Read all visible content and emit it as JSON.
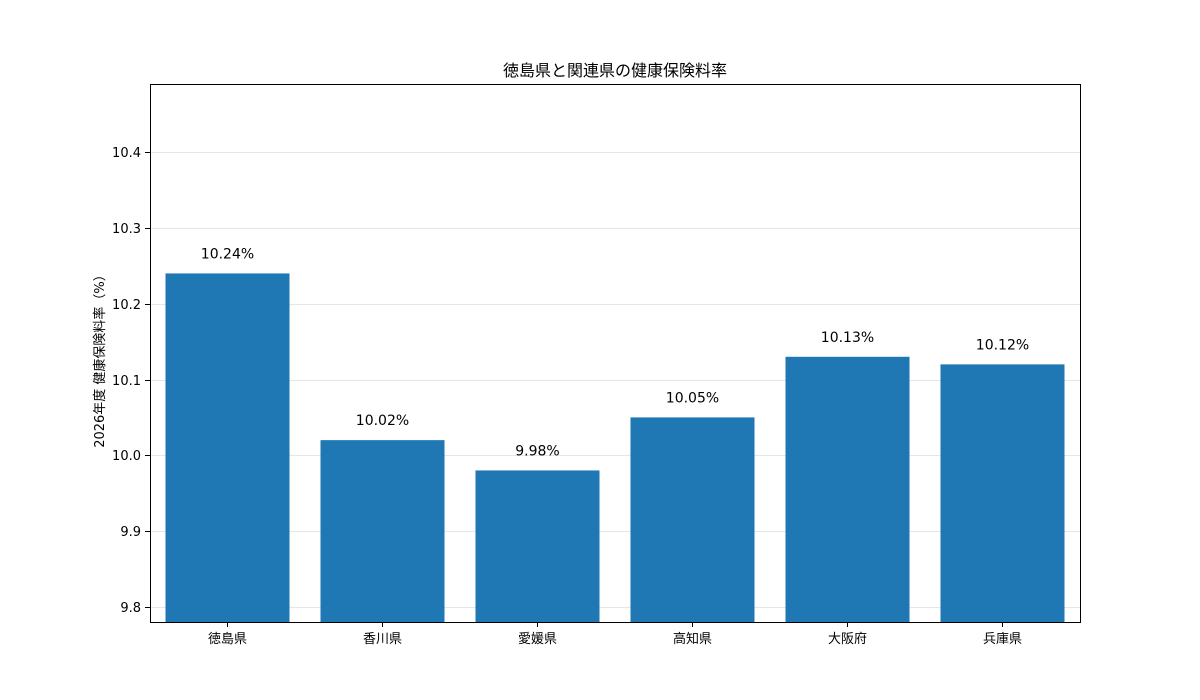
{
  "chart_data": {
    "type": "bar",
    "title": "徳島県と関連県の健康保険料率",
    "xlabel": "",
    "ylabel": "2026年度 健康保険料率（%）",
    "categories": [
      "徳島県",
      "香川県",
      "愛媛県",
      "高知県",
      "大阪府",
      "兵庫県"
    ],
    "values": [
      10.24,
      10.02,
      9.98,
      10.05,
      10.13,
      10.12
    ],
    "data_labels": [
      "10.24%",
      "10.02%",
      "9.98%",
      "10.05%",
      "10.13%",
      "10.12%"
    ],
    "ylim": [
      9.78,
      10.49
    ],
    "yticks": [
      9.8,
      9.9,
      10.0,
      10.1,
      10.2,
      10.3,
      10.4
    ],
    "ytick_labels": [
      "9.8",
      "9.9",
      "10.0",
      "10.1",
      "10.2",
      "10.3",
      "10.4"
    ],
    "grid": true,
    "bar_color": "#1f77b4"
  }
}
